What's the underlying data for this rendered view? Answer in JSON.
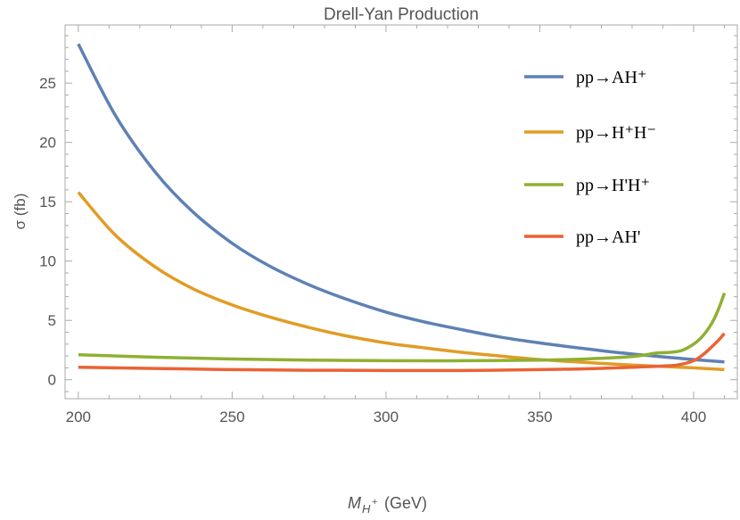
{
  "chart_data": {
    "type": "line",
    "title": "Drell-Yan Production",
    "xlabel": "M_H+ (GeV)",
    "xlabel_main": "M",
    "xlabel_sub": "H",
    "xlabel_sup": "+",
    "xlabel_unit": "(GeV)",
    "ylabel": "σ (fb)",
    "xlim": [
      195.7,
      414.2
    ],
    "ylim": [
      -1.6,
      29.9
    ],
    "xticks": [
      200,
      250,
      300,
      350,
      400
    ],
    "yticks": [
      0,
      5,
      10,
      15,
      20,
      25
    ],
    "grid": false,
    "legend_placement": "top-right",
    "series": [
      {
        "name": "pp→AH⁺",
        "color": "#5e81b5",
        "x": [
          200,
          212,
          225,
          237,
          250,
          262,
          275,
          287,
          300,
          312,
          325,
          337,
          350,
          362,
          375,
          387,
          400,
          410
        ],
        "y": [
          28.3,
          22.3,
          17.5,
          14.2,
          11.5,
          9.6,
          8.0,
          6.8,
          5.7,
          4.9,
          4.2,
          3.6,
          3.1,
          2.7,
          2.3,
          2.0,
          1.7,
          1.5
        ]
      },
      {
        "name": "pp→H⁺H⁻",
        "color": "#e19c24",
        "x": [
          200,
          212,
          225,
          237,
          250,
          262,
          275,
          287,
          300,
          312,
          325,
          337,
          350,
          362,
          375,
          387,
          400,
          410
        ],
        "y": [
          15.8,
          12.2,
          9.5,
          7.7,
          6.3,
          5.3,
          4.4,
          3.7,
          3.1,
          2.7,
          2.3,
          2.0,
          1.7,
          1.5,
          1.3,
          1.15,
          1.0,
          0.85
        ]
      },
      {
        "name": "pp→H'H⁺",
        "color": "#8fb032",
        "x": [
          200,
          225,
          250,
          275,
          300,
          325,
          350,
          365,
          380,
          388,
          392,
          396,
          400,
          403,
          406,
          408,
          410
        ],
        "y": [
          2.1,
          1.9,
          1.75,
          1.65,
          1.6,
          1.6,
          1.65,
          1.75,
          1.95,
          2.25,
          2.3,
          2.45,
          3.0,
          3.7,
          4.8,
          5.9,
          7.3
        ]
      },
      {
        "name": "pp→AH'",
        "color": "#eb6235",
        "x": [
          200,
          225,
          250,
          275,
          300,
          325,
          350,
          365,
          380,
          390,
          395,
          400,
          403,
          406,
          408,
          410
        ],
        "y": [
          1.05,
          0.95,
          0.85,
          0.8,
          0.78,
          0.78,
          0.85,
          0.92,
          1.05,
          1.15,
          1.25,
          1.6,
          2.1,
          2.8,
          3.3,
          3.9
        ]
      }
    ]
  }
}
